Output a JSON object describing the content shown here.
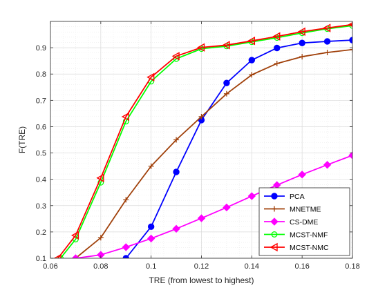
{
  "chart_data": {
    "type": "line",
    "title": "",
    "xlabel": "TRE (from lowest to highest)",
    "ylabel": "F(TRE)",
    "xlim": [
      0.06,
      0.18
    ],
    "ylim": [
      0.1,
      1.0
    ],
    "xticks": [
      0.06,
      0.08,
      0.1,
      0.12,
      0.14,
      0.16,
      0.18
    ],
    "xtick_labels": [
      "0.06",
      "0.08",
      "0.1",
      "0.12",
      "0.14",
      "0.16",
      "0.18"
    ],
    "yticks": [
      0.1,
      0.2,
      0.3,
      0.4,
      0.5,
      0.6,
      0.7,
      0.8,
      0.9
    ],
    "ytick_labels": [
      "0.1",
      "0.2",
      "0.3",
      "0.4",
      "0.5",
      "0.6",
      "0.7",
      "0.8",
      "0.9"
    ],
    "grid": true,
    "minor_grid": true,
    "legend_position": "bottom-right",
    "series": [
      {
        "name": "PCA",
        "color": "#0000ff",
        "marker": "circle-filled",
        "x": [
          0.09,
          0.1,
          0.11,
          0.12,
          0.13,
          0.14,
          0.15,
          0.16,
          0.17,
          0.18
        ],
        "y": [
          0.1,
          0.22,
          0.428,
          0.625,
          0.766,
          0.853,
          0.899,
          0.918,
          0.924,
          0.929
        ]
      },
      {
        "name": "MNETME",
        "color": "#a0400a",
        "marker": "plus",
        "x": [
          0.07,
          0.08,
          0.09,
          0.1,
          0.11,
          0.12,
          0.13,
          0.14,
          0.15,
          0.16,
          0.17,
          0.18
        ],
        "y": [
          0.1,
          0.178,
          0.322,
          0.45,
          0.55,
          0.638,
          0.725,
          0.797,
          0.84,
          0.866,
          0.882,
          0.893
        ]
      },
      {
        "name": "CS-DME",
        "color": "#ff00ff",
        "marker": "diamond-filled",
        "x": [
          0.07,
          0.08,
          0.09,
          0.1,
          0.11,
          0.12,
          0.13,
          0.14,
          0.15,
          0.16,
          0.17,
          0.18
        ],
        "y": [
          0.1,
          0.113,
          0.142,
          0.175,
          0.212,
          0.252,
          0.293,
          0.336,
          0.378,
          0.418,
          0.455,
          0.491
        ]
      },
      {
        "name": "MCST-NMF",
        "color": "#00ff00",
        "marker": "circle-open",
        "x": [
          0.064,
          0.07,
          0.08,
          0.09,
          0.1,
          0.11,
          0.12,
          0.13,
          0.14,
          0.15,
          0.16,
          0.17,
          0.18
        ],
        "y": [
          0.1,
          0.172,
          0.388,
          0.62,
          0.772,
          0.858,
          0.896,
          0.906,
          0.922,
          0.938,
          0.956,
          0.972,
          0.984
        ]
      },
      {
        "name": "MCST-NMC",
        "color": "#ff0000",
        "marker": "triangle-left-open",
        "x": [
          0.063,
          0.07,
          0.08,
          0.09,
          0.1,
          0.11,
          0.12,
          0.13,
          0.14,
          0.15,
          0.16,
          0.17,
          0.18
        ],
        "y": [
          0.1,
          0.187,
          0.405,
          0.638,
          0.788,
          0.868,
          0.901,
          0.91,
          0.926,
          0.943,
          0.961,
          0.975,
          0.988
        ]
      }
    ]
  }
}
